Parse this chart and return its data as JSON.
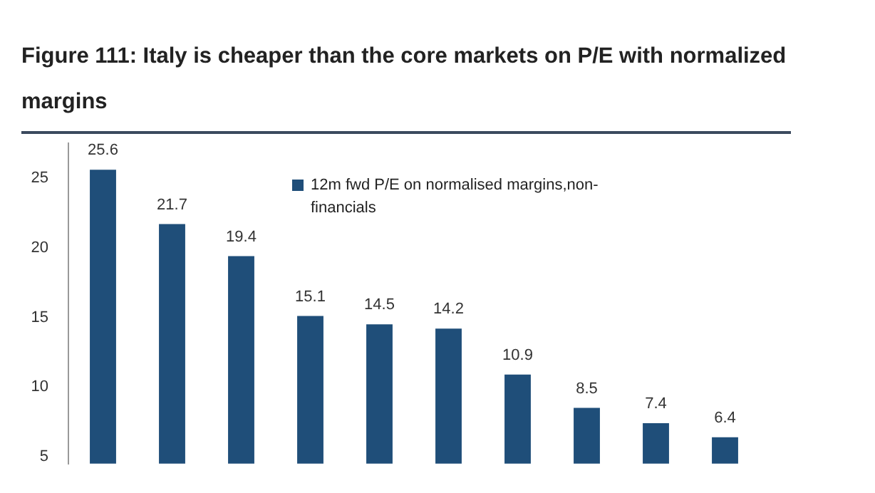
{
  "chart_data": {
    "type": "bar",
    "title": "Figure 111: Italy is cheaper than the core markets on P/E with normalized margins",
    "categories": [
      null,
      null,
      null,
      null,
      null,
      null,
      null,
      null,
      null,
      null
    ],
    "series": [
      {
        "name": "12m fwd P/E on normalised margins,non-financials",
        "color": "#1f4e79",
        "values": [
          25.6,
          21.7,
          19.4,
          15.1,
          14.5,
          14.2,
          10.9,
          8.5,
          7.4,
          6.4
        ]
      }
    ],
    "ylim": [
      4.5,
      27.5
    ],
    "yticks": [
      5,
      10,
      15,
      20,
      25
    ],
    "grid": false,
    "legend": "top",
    "data_labels": true,
    "tick_labels": "y"
  }
}
